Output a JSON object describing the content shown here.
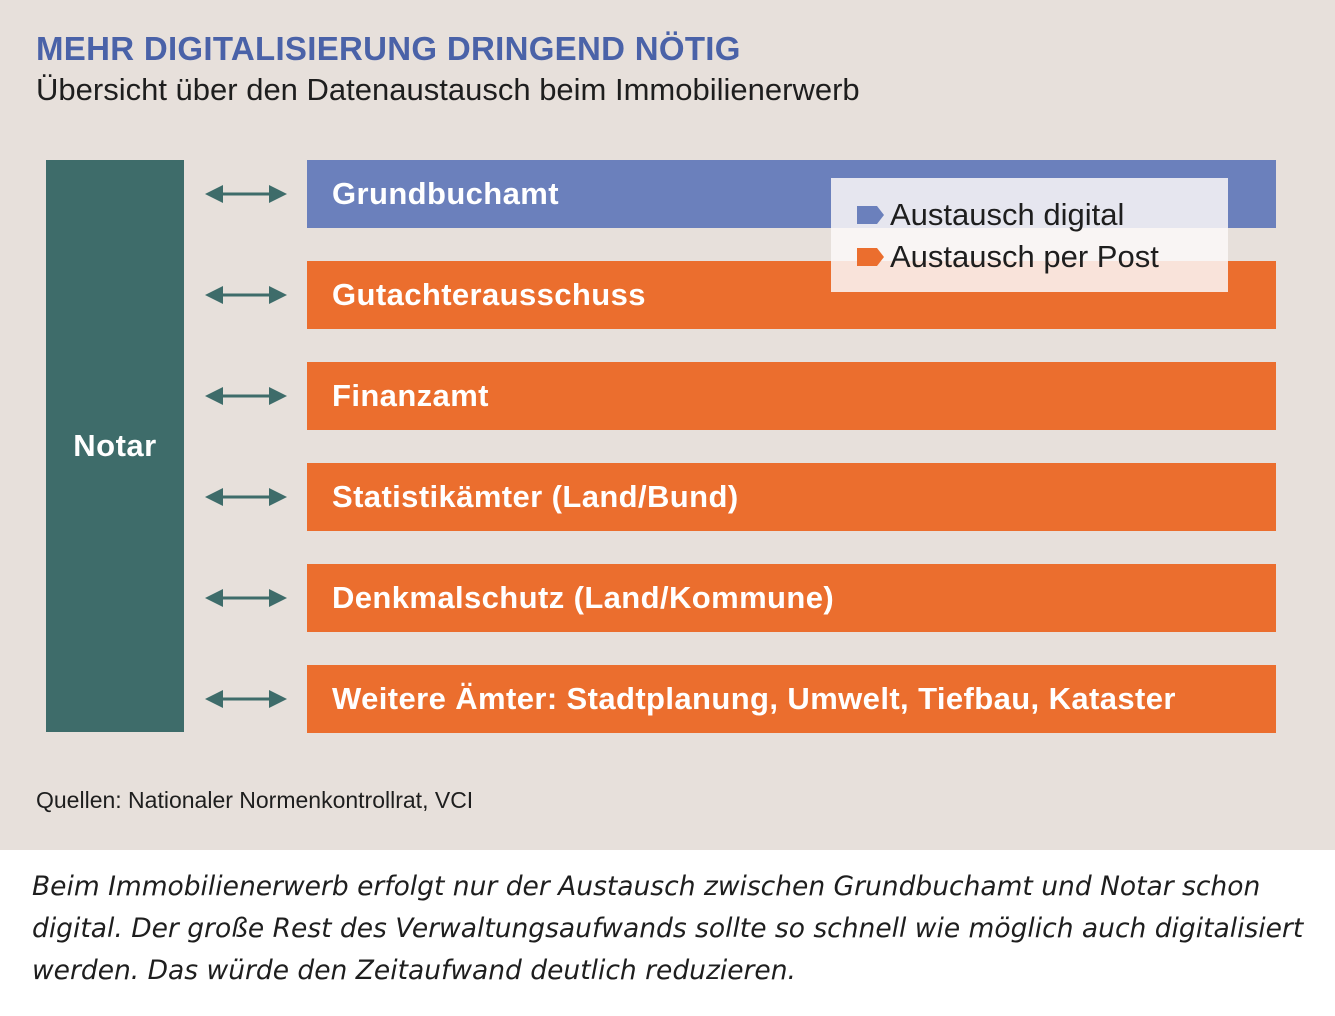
{
  "header": {
    "title": "MEHR DIGITALISIERUNG DRINGEND NÖTIG",
    "subtitle": "Übersicht über den Datenaustausch beim Immobilienerwerb"
  },
  "diagram": {
    "hub": {
      "label": "Notar",
      "color": "#3e6c6a"
    },
    "connector": {
      "icon": "double-arrow-icon",
      "color": "#3e6c6a"
    },
    "nodes": [
      {
        "label": "Grundbuchamt",
        "exchange": "Austausch digital",
        "color": "#6b80bc"
      },
      {
        "label": "Gutachterausschuss",
        "exchange": "Austausch per Post",
        "color": "#eb6e2e"
      },
      {
        "label": "Finanzamt",
        "exchange": "Austausch per Post",
        "color": "#eb6e2e"
      },
      {
        "label": "Statistikämter (Land/Bund)",
        "exchange": "Austausch per Post",
        "color": "#eb6e2e"
      },
      {
        "label": "Denkmalschutz (Land/Kommune)",
        "exchange": "Austausch per Post",
        "color": "#eb6e2e"
      },
      {
        "label": "Weitere Ämter: Stadtplanung, Umwelt, Tiefbau, Kataster",
        "exchange": "Austausch per Post",
        "color": "#eb6e2e"
      }
    ]
  },
  "legend": {
    "items": [
      {
        "label": "Austausch digital",
        "color": "#6b80bc"
      },
      {
        "label": "Austausch per Post",
        "color": "#eb6e2e"
      }
    ]
  },
  "source": "Quellen: Nationaler Normenkontrollrat, VCI",
  "caption": "Beim Immobilienerwerb erfolgt nur der Austausch zwischen Grundbuchamt und Notar schon digital. Der große Rest des Verwaltungsaufwands sollte so schnell wie möglich auch digitalisiert werden. Das würde den Zeitaufwand deutlich reduzieren."
}
